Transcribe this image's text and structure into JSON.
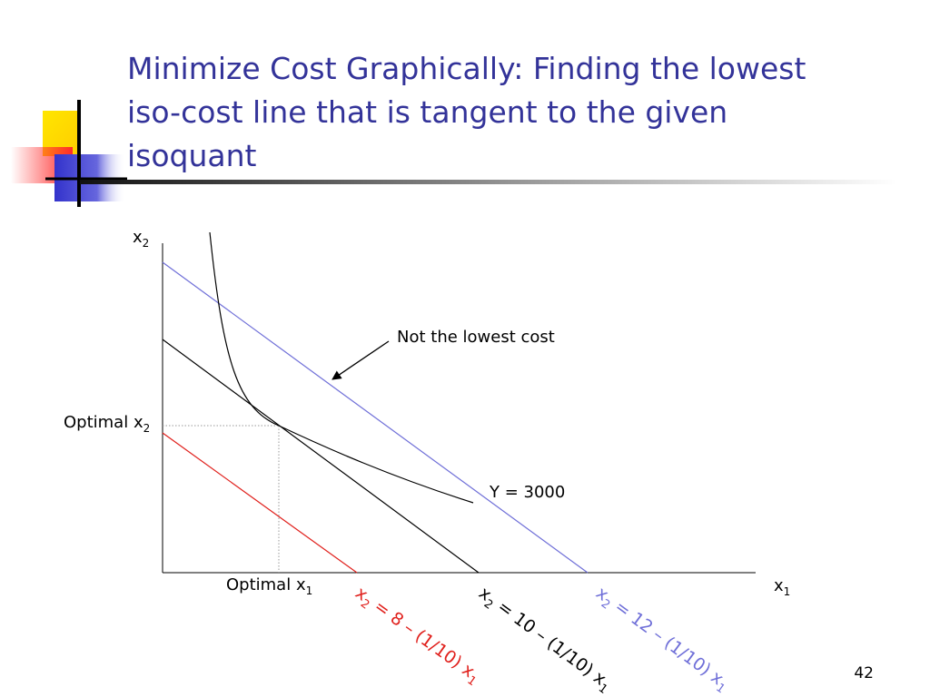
{
  "slide": {
    "title_lines": [
      "Minimize Cost Graphically: Finding the lowest",
      "iso-cost line that is tangent to the given",
      "isoquant"
    ],
    "slide_number": "42"
  },
  "diagram": {
    "axes": {
      "x": {
        "base": "x",
        "sub": "1"
      },
      "y": {
        "base": "x",
        "sub": "2"
      }
    },
    "optimal_x1": {
      "base": "Optimal x",
      "sub": "1"
    },
    "optimal_x2": {
      "base": "Optimal x",
      "sub": "2"
    },
    "isoquant_label": "Y = 3000",
    "annotation": "Not the lowest cost",
    "isocost_lines": [
      {
        "pre": "x",
        "sub1": "2",
        "mid": " = 8 – (1/10) x",
        "sub2": "1",
        "color": "#e0201c"
      },
      {
        "pre": "x",
        "sub1": "2",
        "mid": " = 10 – (1/10) x",
        "sub2": "1",
        "color": "#000000"
      },
      {
        "pre": "x",
        "sub1": "2",
        "mid": " = 12 – (1/10) x",
        "sub2": "1",
        "color": "#6f6fd8"
      }
    ]
  }
}
